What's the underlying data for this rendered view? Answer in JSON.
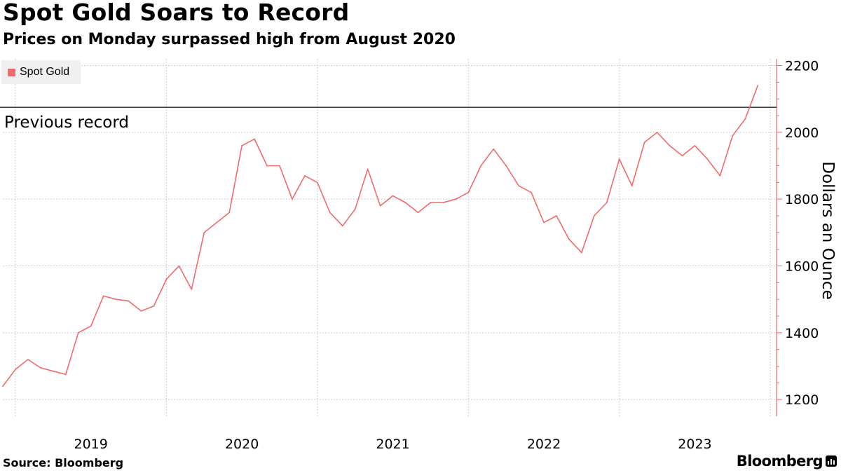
{
  "header": {
    "title": "Spot Gold Soars to Record",
    "subtitle": "Prices on Monday surpassed high from August 2020"
  },
  "footer": {
    "source": "Source: Bloomberg",
    "brand": "Bloomberg"
  },
  "colors": {
    "series": "#f06b6b",
    "legend_bg": "#f0f0f0",
    "grid": "#cccccc",
    "axis": "#f06b6b",
    "reference_line": "#000000"
  },
  "chart_data": {
    "type": "line",
    "title": "Spot Gold Soars to Record",
    "subtitle": "Prices on Monday surpassed high from August 2020",
    "ylabel": "Dollars an Ounce",
    "xlabel": "",
    "ylim": [
      1150,
      2220
    ],
    "yticks": [
      1200,
      1400,
      1600,
      1800,
      2000,
      2200
    ],
    "x_tick_labels": [
      "2019",
      "2020",
      "2021",
      "2022",
      "2023"
    ],
    "y_axis_side": "right",
    "grid": true,
    "legend": "top-left",
    "legend_entries": [
      "Spot Gold"
    ],
    "reference_lines": [
      {
        "label": "Previous record",
        "value": 2075
      }
    ],
    "series": [
      {
        "name": "Spot Gold",
        "x": [
          "2018-12",
          "2019-01",
          "2019-02",
          "2019-03",
          "2019-04",
          "2019-05",
          "2019-06",
          "2019-07",
          "2019-08",
          "2019-09",
          "2019-10",
          "2019-11",
          "2019-12",
          "2020-01",
          "2020-02",
          "2020-03",
          "2020-04",
          "2020-05",
          "2020-06",
          "2020-07",
          "2020-08",
          "2020-09",
          "2020-10",
          "2020-11",
          "2020-12",
          "2021-01",
          "2021-02",
          "2021-03",
          "2021-04",
          "2021-05",
          "2021-06",
          "2021-07",
          "2021-08",
          "2021-09",
          "2021-10",
          "2021-11",
          "2021-12",
          "2022-01",
          "2022-02",
          "2022-03",
          "2022-04",
          "2022-05",
          "2022-06",
          "2022-07",
          "2022-08",
          "2022-09",
          "2022-10",
          "2022-11",
          "2022-12",
          "2023-01",
          "2023-02",
          "2023-03",
          "2023-04",
          "2023-05",
          "2023-06",
          "2023-07",
          "2023-08",
          "2023-09",
          "2023-10",
          "2023-11",
          "2023-12"
        ],
        "values": [
          1240,
          1290,
          1320,
          1295,
          1285,
          1275,
          1400,
          1420,
          1510,
          1500,
          1495,
          1465,
          1480,
          1560,
          1600,
          1530,
          1700,
          1730,
          1760,
          1960,
          1980,
          1900,
          1900,
          1800,
          1870,
          1850,
          1760,
          1720,
          1770,
          1890,
          1780,
          1810,
          1790,
          1760,
          1790,
          1790,
          1800,
          1820,
          1900,
          1950,
          1900,
          1840,
          1820,
          1730,
          1750,
          1680,
          1640,
          1750,
          1790,
          1920,
          1840,
          1970,
          2000,
          1960,
          1930,
          1960,
          1920,
          1870,
          1990,
          2040,
          2140
        ]
      }
    ]
  }
}
